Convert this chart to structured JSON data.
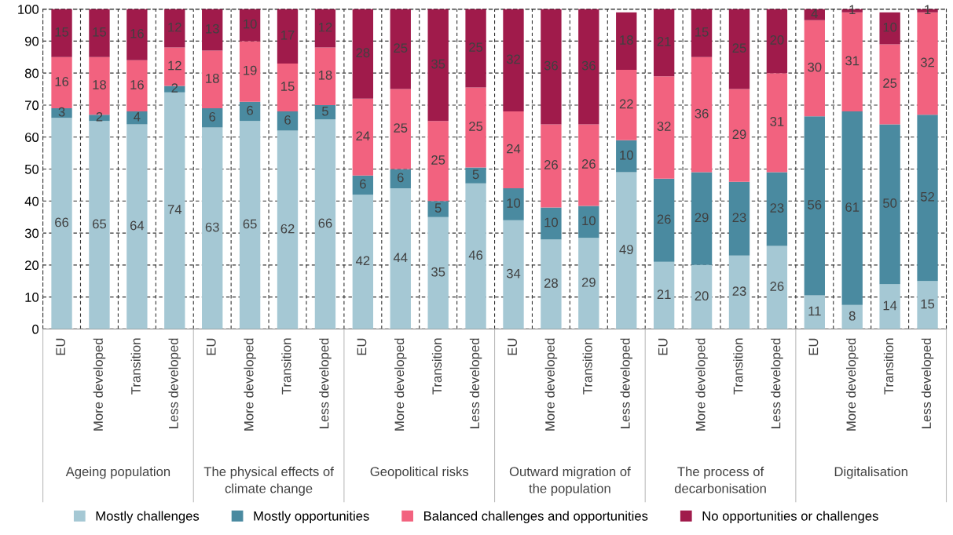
{
  "chart_data": {
    "type": "bar",
    "stacked": true,
    "categories": [
      "EU",
      "More developed",
      "Transition",
      "Less developed",
      "EU",
      "More developed",
      "Transition",
      "Less developed",
      "EU",
      "More developed",
      "Transition",
      "Less developed",
      "EU",
      "More developed",
      "Transition",
      "Less developed",
      "EU",
      "More developed",
      "Transition",
      "Less developed",
      "EU",
      "More developed",
      "Transition",
      "Less developed"
    ],
    "annotations": [
      "Ageing population",
      "The physical effects of\nclimate change",
      "Geopolitical risks",
      "Outward migration of\nthe population",
      "The process of\ndecarbonisation",
      "Digitalisation"
    ],
    "series": [
      {
        "name": "Mostly challenges",
        "color": "#a5c8d4",
        "values": [
          66,
          65,
          64,
          74,
          63,
          65,
          62,
          65.5,
          42,
          44,
          35,
          45.5,
          34,
          28,
          28.5,
          49,
          21,
          20,
          23,
          26,
          10.5,
          7.5,
          14,
          15
        ],
        "value_labels": [
          "66",
          "65",
          "64",
          "74",
          "63",
          "65",
          "62",
          "66",
          "42",
          "44",
          "35",
          "46",
          "34",
          "28",
          "29",
          "49",
          "21",
          "20",
          "23",
          "26",
          "11",
          "8",
          "14",
          "15"
        ]
      },
      {
        "name": "Mostly opportunities",
        "color": "#4a8aa0",
        "values": [
          3,
          2,
          4,
          2,
          6,
          6,
          6,
          4.5,
          6,
          6,
          5,
          5,
          10,
          10,
          10,
          10,
          26,
          29,
          23,
          23,
          56,
          60.5,
          50,
          52
        ],
        "value_labels": [
          "3",
          "2",
          "4",
          "2",
          "6",
          "6",
          "6",
          "5",
          "6",
          "6",
          "5",
          "5",
          "10",
          "10",
          "10",
          "10",
          "26",
          "29",
          "23",
          "23",
          "56",
          "61",
          "50",
          "52"
        ]
      },
      {
        "name": "Balanced challenges and opportunities",
        "color": "#f2627f",
        "values": [
          16,
          18,
          16,
          12,
          18,
          19,
          15,
          18,
          24,
          25,
          25,
          25,
          24,
          26,
          25.5,
          22,
          32,
          36,
          29,
          31,
          30,
          31,
          25,
          32
        ],
        "value_labels": [
          "16",
          "18",
          "16",
          "12",
          "18",
          "19",
          "15",
          "18",
          "24",
          "25",
          "25",
          "25",
          "24",
          "26",
          "26",
          "22",
          "32",
          "36",
          "29",
          "31",
          "30",
          "31",
          "25",
          "32"
        ]
      },
      {
        "name": "No opportunities or challenges",
        "color": "#a01b4b",
        "values": [
          15,
          15,
          16,
          12,
          13,
          10,
          17,
          12,
          28,
          25,
          35,
          24.5,
          32,
          36,
          36,
          18,
          21,
          15,
          25,
          20,
          3.5,
          1,
          10,
          1
        ],
        "value_labels": [
          "15",
          "15",
          "16",
          "12",
          "13",
          "10",
          "17",
          "12",
          "28",
          "25",
          "35",
          "25",
          "32",
          "36",
          "36",
          "18",
          "21",
          "15",
          "25",
          "20",
          "4",
          "1",
          "10",
          "1"
        ]
      }
    ],
    "ylim": [
      0,
      100
    ],
    "yticks": [
      0,
      10,
      20,
      30,
      40,
      50,
      60,
      70,
      80,
      90,
      100
    ],
    "grid": true,
    "legend": "bottom"
  }
}
